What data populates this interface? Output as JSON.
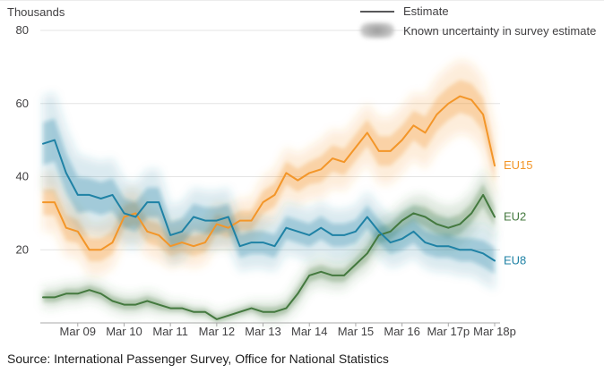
{
  "header": {
    "units_label": "Thousands"
  },
  "legend": {
    "estimate_label": "Estimate",
    "uncertainty_label": "Known uncertainty in survey estimate"
  },
  "source": "Source: International Passenger Survey, Office for National Statistics",
  "colors": {
    "grid": "#e4e4e4",
    "axis": "#a9a9a9",
    "text": "#414042",
    "legend_line": "#58585a",
    "legend_band": "#a7a7a7"
  },
  "chart_data": {
    "type": "line",
    "title": "",
    "ylabel": "Thousands",
    "ylim": [
      0,
      80
    ],
    "yticks": [
      20,
      40,
      60,
      80
    ],
    "grid": true,
    "legend_position": "top-right",
    "x_tick_labels": [
      "Mar 09",
      "Mar 10",
      "Mar 11",
      "Mar 12",
      "Mar 13",
      "Mar 14",
      "Mar 15",
      "Mar 16",
      "Mar 17p",
      "Mar 18p"
    ],
    "x_tick_indices": [
      3,
      7,
      11,
      15,
      19,
      23,
      27,
      31,
      35,
      39
    ],
    "series": [
      {
        "name": "EU15",
        "color": "#f39629",
        "values": [
          33,
          33,
          26,
          25,
          20,
          20,
          22,
          29,
          30,
          25,
          24,
          21,
          22,
          21,
          22,
          27,
          26,
          28,
          28,
          33,
          35,
          41,
          39,
          41,
          42,
          45,
          44,
          48,
          52,
          47,
          47,
          50,
          54,
          52,
          57,
          60,
          62,
          61,
          57,
          43
        ],
        "uncertainty": [
          8,
          8,
          8,
          7,
          7,
          7,
          7,
          7,
          7,
          7,
          7,
          6,
          6,
          6,
          6,
          6,
          6,
          6,
          6,
          7,
          7,
          7,
          7,
          7,
          8,
          8,
          8,
          8,
          8,
          9,
          9,
          9,
          9,
          10,
          10,
          10,
          10,
          10,
          10,
          10
        ]
      },
      {
        "name": "EU2",
        "color": "#44793f",
        "values": [
          7,
          7,
          8,
          8,
          9,
          8,
          6,
          5,
          5,
          6,
          5,
          4,
          4,
          3,
          3,
          1,
          2,
          3,
          4,
          3,
          3,
          4,
          8,
          13,
          14,
          13,
          13,
          16,
          19,
          24,
          25,
          28,
          30,
          29,
          27,
          26,
          27,
          30,
          35,
          29
        ],
        "uncertainty": [
          3,
          3,
          3,
          3,
          3,
          3,
          3,
          3,
          3,
          3,
          3,
          2,
          2,
          2,
          2,
          2,
          2,
          2,
          2,
          3,
          3,
          3,
          4,
          4,
          4,
          4,
          4,
          4,
          5,
          5,
          5,
          5,
          5,
          6,
          6,
          6,
          6,
          6,
          7,
          6
        ]
      },
      {
        "name": "EU8",
        "color": "#1f82a5",
        "values": [
          49,
          50,
          41,
          35,
          35,
          34,
          35,
          30,
          29,
          33,
          33,
          24,
          25,
          29,
          28,
          28,
          29,
          21,
          22,
          22,
          21,
          26,
          25,
          24,
          26,
          24,
          24,
          25,
          29,
          25,
          22,
          23,
          25,
          22,
          21,
          21,
          20,
          20,
          19,
          17
        ],
        "uncertainty": [
          13,
          13,
          12,
          11,
          10,
          10,
          10,
          9,
          9,
          9,
          9,
          8,
          8,
          8,
          8,
          8,
          8,
          7,
          7,
          7,
          7,
          7,
          7,
          7,
          7,
          7,
          7,
          7,
          7,
          7,
          7,
          7,
          7,
          7,
          7,
          7,
          7,
          7,
          8,
          8
        ]
      }
    ]
  }
}
